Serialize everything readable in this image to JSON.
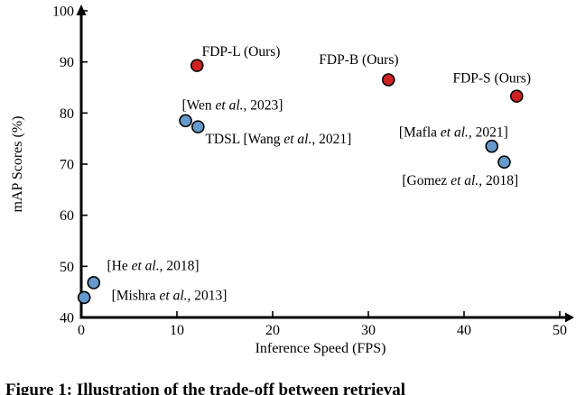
{
  "figure": {
    "caption": "Figure 1: Illustration of the trade-off between retrieval"
  },
  "chart_data": {
    "type": "scatter",
    "title": "",
    "xlabel": "Inference Speed (FPS)",
    "ylabel": "mAP Scores (%)",
    "xlim": [
      0,
      50
    ],
    "ylim": [
      40,
      100
    ],
    "xticks": [
      0,
      10,
      20,
      30,
      40,
      50
    ],
    "yticks": [
      40,
      50,
      60,
      70,
      80,
      90,
      100
    ],
    "grid": false,
    "legend": "none (direct point labels)",
    "colors": {
      "ours": "#cc2222",
      "baseline": "#6699cc",
      "marker_outline": "#000000",
      "axis": "#000000"
    },
    "points": [
      {
        "label": "FDP-L (Ours)",
        "x": 12.1,
        "y": 89.3,
        "group": "ours",
        "label_x": 16.7,
        "label_y": 91.2
      },
      {
        "label": "FDP-B (Ours)",
        "x": 32.1,
        "y": 86.5,
        "group": "ours",
        "label_x": 29.0,
        "label_y": 89.6
      },
      {
        "label": "FDP-S (Ours)",
        "x": 45.5,
        "y": 83.3,
        "group": "ours",
        "label_x": 42.9,
        "label_y": 86.0
      },
      {
        "label": "[Wen et al., 2023]",
        "x": 10.9,
        "y": 78.5,
        "group": "baseline",
        "label_x": 15.8,
        "label_y": 80.7
      },
      {
        "label": "TDSL [Wang et al., 2021]",
        "x": 12.2,
        "y": 77.3,
        "group": "baseline",
        "label_x": 20.6,
        "label_y": 74.1
      },
      {
        "label": "[Mafla et al., 2021]",
        "x": 42.9,
        "y": 73.5,
        "group": "baseline",
        "label_x": 38.9,
        "label_y": 75.4
      },
      {
        "label": "[Gomez et al., 2018]",
        "x": 44.2,
        "y": 70.4,
        "group": "baseline",
        "label_x": 39.6,
        "label_y": 65.9
      },
      {
        "label": "[He et al., 2018]",
        "x": 1.3,
        "y": 46.8,
        "group": "baseline",
        "label_x": 7.5,
        "label_y": 49.3
      },
      {
        "label": "[Mishra et al., 2013]",
        "x": 0.3,
        "y": 43.9,
        "group": "baseline",
        "label_x": 9.2,
        "label_y": 43.4
      }
    ]
  }
}
